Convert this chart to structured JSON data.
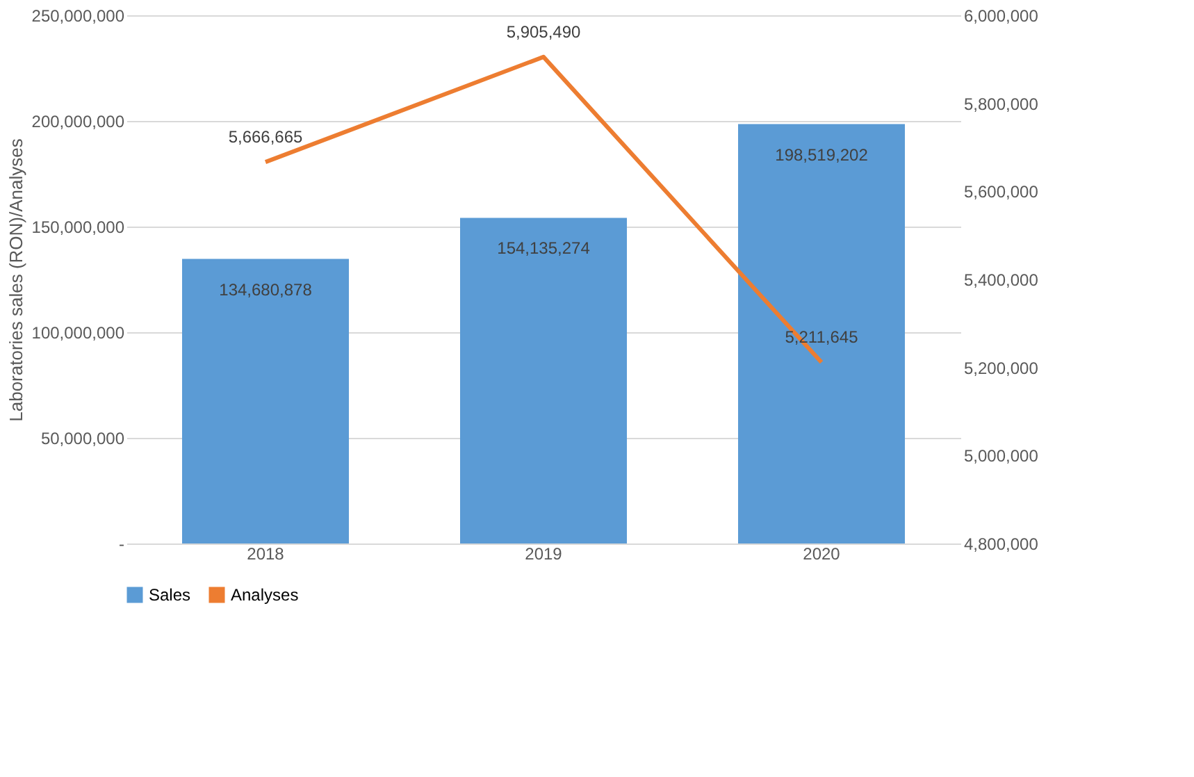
{
  "chart_data": {
    "type": "bar",
    "categories": [
      "2018",
      "2019",
      "2020"
    ],
    "ylabel": "Laboratories sales (RON)/Analyses",
    "series": [
      {
        "name": "Sales",
        "color": "#5b9bd5",
        "values": [
          134680878,
          154135274,
          198519202
        ],
        "value_labels": [
          "134,680,878",
          "154,135,274",
          "198,519,202"
        ]
      },
      {
        "name": "Analyses",
        "type": "line",
        "axis": "y2",
        "color": "#ed7d31",
        "values": [
          5666665,
          5905490,
          5211645
        ],
        "value_labels": [
          "5,666,665",
          "5,905,490",
          "5,211,645"
        ]
      }
    ],
    "ylim": [
      0,
      250000000
    ],
    "yticks": [
      {
        "value": 0,
        "label": "-"
      },
      {
        "value": 50000000,
        "label": "50,000,000"
      },
      {
        "value": 100000000,
        "label": "100,000,000"
      },
      {
        "value": 150000000,
        "label": "150,000,000"
      },
      {
        "value": 200000000,
        "label": "200,000,000"
      },
      {
        "value": 250000000,
        "label": "250,000,000"
      }
    ],
    "y2lim": [
      4800000,
      6000000
    ],
    "y2ticks": [
      {
        "value": 4800000,
        "label": "4,800,000"
      },
      {
        "value": 5000000,
        "label": "5,000,000"
      },
      {
        "value": 5200000,
        "label": "5,200,000"
      },
      {
        "value": 5400000,
        "label": "5,400,000"
      },
      {
        "value": 5600000,
        "label": "5,600,000"
      },
      {
        "value": 5800000,
        "label": "5,800,000"
      },
      {
        "value": 6000000,
        "label": "6,000,000"
      }
    ],
    "grid": "y",
    "legend": "bottom",
    "marker": "none",
    "line_style": "solid"
  }
}
